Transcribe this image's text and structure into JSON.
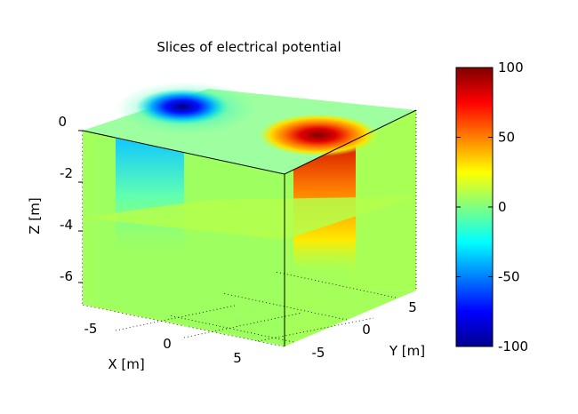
{
  "chart_data": {
    "type": "heatmap",
    "title": "Slices of electrical potential",
    "xlabel": "X [m]",
    "ylabel": "Y [m]",
    "zlabel": "Z [m]",
    "x_ticks": [
      "-5",
      "0",
      "5"
    ],
    "y_ticks": [
      "-5",
      "0",
      "5"
    ],
    "z_ticks": [
      "0",
      "-2",
      "-4",
      "-6"
    ],
    "xlim": [
      -7,
      7
    ],
    "ylim": [
      -7,
      7
    ],
    "zlim": [
      -7,
      0
    ],
    "slice_planes": {
      "z": [
        0,
        -3.5
      ],
      "x": [
        -1.5
      ],
      "y": [
        0
      ]
    },
    "sources": [
      {
        "x": -4,
        "y": 2,
        "z": 0,
        "value": -100
      },
      {
        "x": 3,
        "y": -3,
        "z": 0,
        "value": 100
      }
    ],
    "colorbar": {
      "colormap": "jet",
      "range": [
        -100,
        100
      ],
      "ticks": [
        "100",
        "50",
        "0",
        "-50",
        "-100"
      ],
      "colors": [
        "#00008f",
        "#0000ff",
        "#00ffff",
        "#ffff00",
        "#ff0000",
        "#800000"
      ]
    },
    "grid": true
  }
}
